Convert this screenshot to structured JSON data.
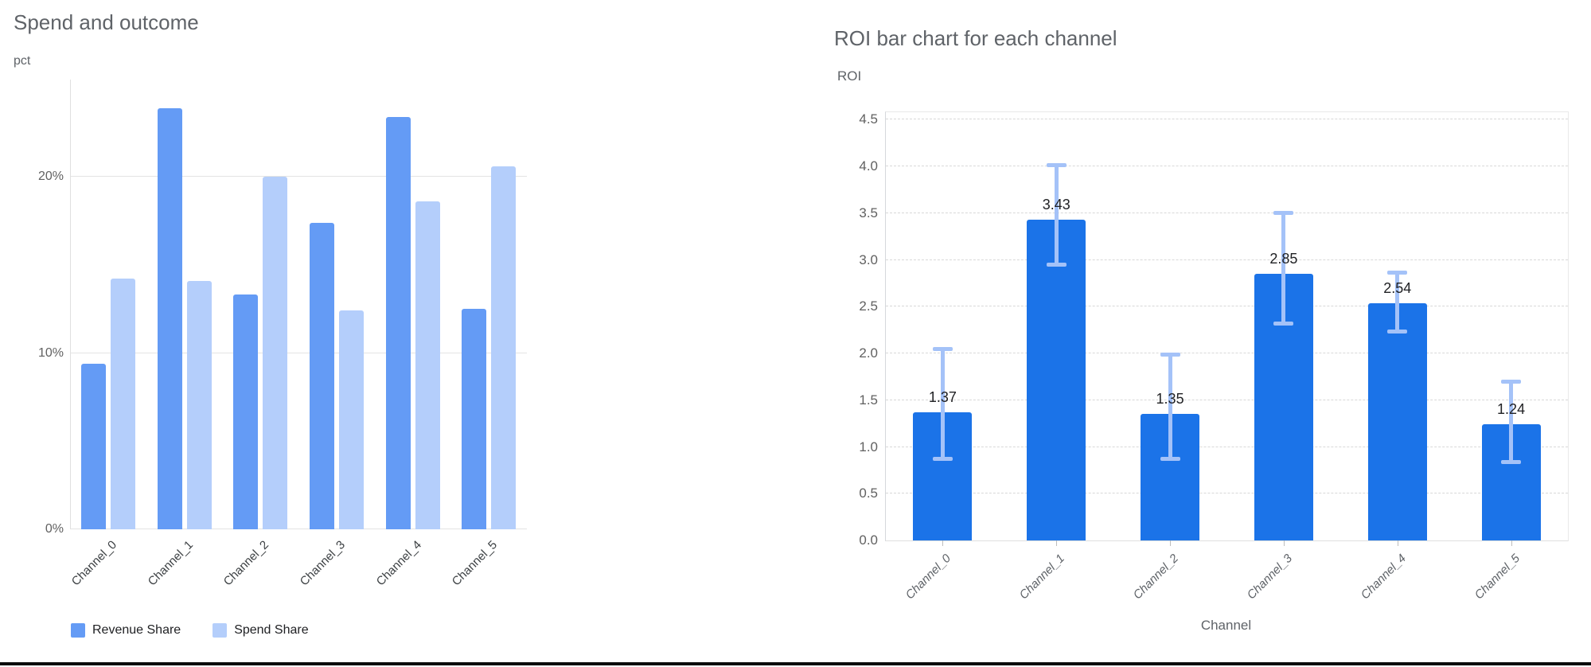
{
  "page": {
    "background": "#ffffff",
    "divider_color": "#0b0b0b"
  },
  "chart_data": [
    {
      "type": "bar",
      "title": "Spend and outcome",
      "ylabel": "pct",
      "xlabel": "",
      "categories": [
        "Channel_0",
        "Channel_1",
        "Channel_2",
        "Channel_3",
        "Channel_4",
        "Channel_5"
      ],
      "series": [
        {
          "name": "Revenue Share",
          "color": "#649BF5",
          "values": [
            9.4,
            23.9,
            13.3,
            17.4,
            23.4,
            12.5
          ]
        },
        {
          "name": "Spend Share",
          "color": "#B4CEFB",
          "values": [
            14.2,
            14.1,
            20.0,
            12.4,
            18.6,
            20.6
          ]
        }
      ],
      "y_ticks": [
        {
          "label": "0%",
          "value": 0
        },
        {
          "label": "10%",
          "value": 10
        },
        {
          "label": "20%",
          "value": 20
        }
      ],
      "ylim": [
        0,
        25.5
      ],
      "unit": "percent",
      "grid": "solid",
      "legend_position": "bottom"
    },
    {
      "type": "bar",
      "title": "ROI bar chart for each channel",
      "ylabel": "ROI",
      "xlabel": "Channel",
      "categories": [
        "Channel_0",
        "Channel_1",
        "Channel_2",
        "Channel_3",
        "Channel_4",
        "Channel_5"
      ],
      "series": [
        {
          "name": "ROI",
          "color": "#1B73E8",
          "values": [
            1.37,
            3.43,
            1.35,
            2.85,
            2.54,
            1.24
          ]
        }
      ],
      "data_labels": [
        "1.37",
        "3.43",
        "1.35",
        "2.85",
        "2.54",
        "1.24"
      ],
      "error_bars": {
        "color": "#A4C2F8",
        "low": [
          0.88,
          2.95,
          0.88,
          2.32,
          2.24,
          0.84
        ],
        "high": [
          2.05,
          4.02,
          1.99,
          3.51,
          2.87,
          1.7
        ]
      },
      "y_ticks": [
        {
          "label": "0.0",
          "value": 0.0
        },
        {
          "label": "0.5",
          "value": 0.5
        },
        {
          "label": "1.0",
          "value": 1.0
        },
        {
          "label": "1.5",
          "value": 1.5
        },
        {
          "label": "2.0",
          "value": 2.0
        },
        {
          "label": "2.5",
          "value": 2.5
        },
        {
          "label": "3.0",
          "value": 3.0
        },
        {
          "label": "3.5",
          "value": 3.5
        },
        {
          "label": "4.0",
          "value": 4.0
        },
        {
          "label": "4.5",
          "value": 4.5
        }
      ],
      "ylim": [
        0,
        4.58
      ],
      "grid": "dashed",
      "legend_position": "none"
    }
  ]
}
